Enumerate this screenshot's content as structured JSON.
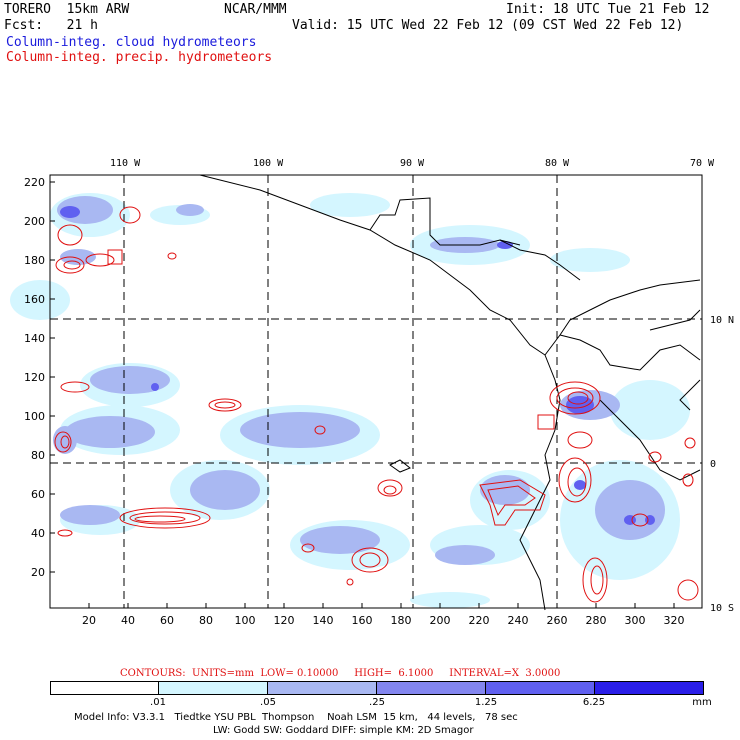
{
  "header": {
    "model_run": "TORERO  15km ARW",
    "center": "NCAR/MMM",
    "init": "Init: 18 UTC Tue 21 Feb 12",
    "fcst": "Fcst:   21 h",
    "valid": "Valid: 15 UTC Wed 22 Feb 12 (09 CST Wed 22 Feb 12)",
    "field_cloud": "Column-integ. cloud hydrometeors",
    "field_precip": "Column-integ. precip. hydrometeors"
  },
  "colors": {
    "cloud_text": "#1a1adc",
    "precip_text": "#e01010",
    "contour": "#e01010",
    "shade_1": "#d4f6ff",
    "shade_2": "#a9b8f2",
    "shade_3": "#8386ef",
    "shade_4": "#6060f0",
    "shade_5": "#2a1ee8"
  },
  "axes": {
    "top_lon_labels": [
      "110 W",
      "100 W",
      "90 W",
      "80 W",
      "70 W"
    ],
    "right_lat_labels": [
      "10 N",
      "0",
      "10 S"
    ],
    "left_y_ticks": [
      "20",
      "40",
      "60",
      "80",
      "100",
      "120",
      "140",
      "160",
      "180",
      "200",
      "220"
    ],
    "bottom_x_ticks": [
      "20",
      "40",
      "60",
      "80",
      "100",
      "120",
      "140",
      "160",
      "180",
      "200",
      "220",
      "240",
      "260",
      "280",
      "300",
      "320"
    ]
  },
  "contour_info": "CONTOURS:  UNITS=mm  LOW= 0.10000     HIGH=  6.1000     INTERVAL=X  3.0000",
  "scale": {
    "labels": [
      ".01",
      ".05",
      ".25",
      "1.25",
      "6.25"
    ],
    "units": "mm"
  },
  "footer": {
    "line1": "Model Info: V3.3.1   Tiedtke YSU PBL  Thompson    Noah LSM  15 km,   44 levels,   78 sec",
    "line2": "LW: Godd SW: Goddard DIFF: simple KM: 2D Smagor"
  }
}
